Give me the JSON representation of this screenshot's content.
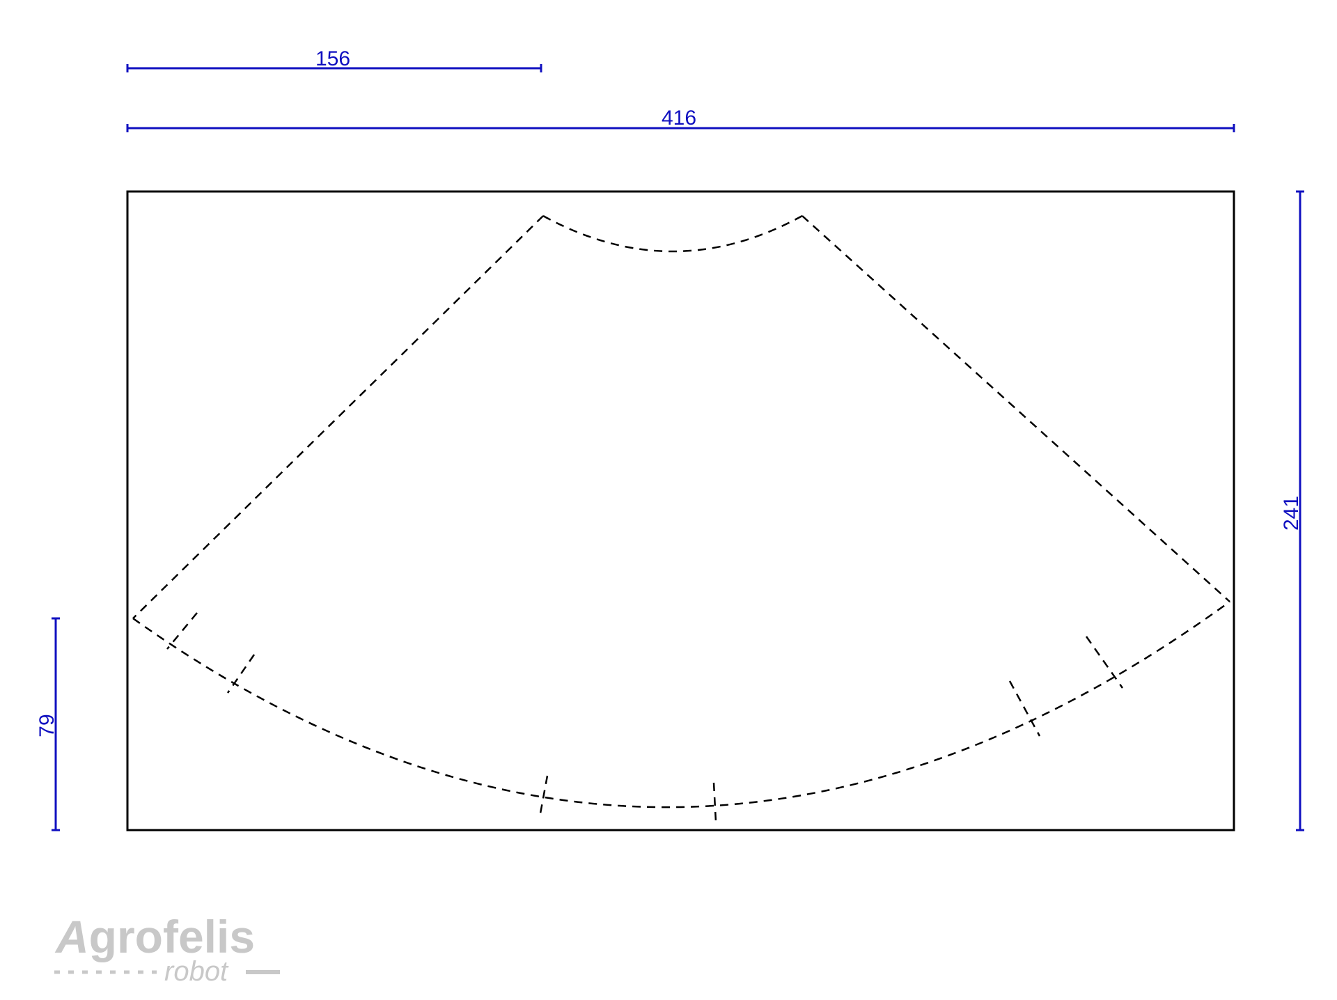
{
  "dimensions": {
    "top_short": "156",
    "top_full": "416",
    "right_height": "241",
    "left_height": "79"
  },
  "logo": {
    "letter_a": "A",
    "rest": "grofelis",
    "sub": "robot"
  },
  "colors": {
    "dimension": "#1010c0",
    "outline": "#000000",
    "logo": "#c8c8c8"
  }
}
